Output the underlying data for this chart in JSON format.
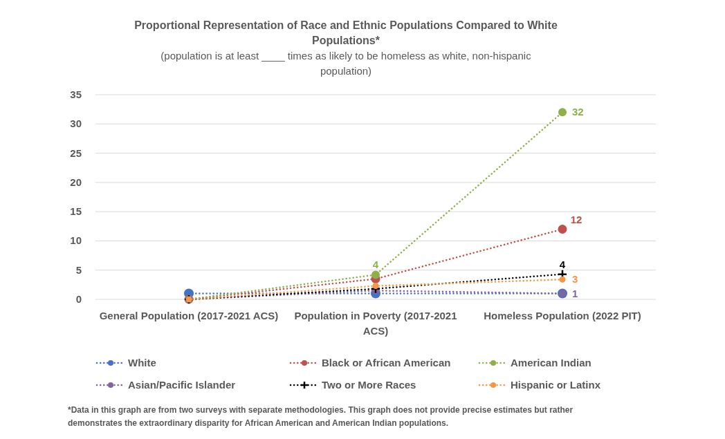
{
  "chart_data": {
    "type": "line",
    "title": "Proportional Representation of Race and Ethnic Populations Compared to White Populations*",
    "subtitle": "(population is at least ____ times as likely to be homeless as white, non-hispanic population)",
    "categories": [
      "General Population (2017-2021 ACS)",
      "Population in Poverty (2017-2021 ACS)",
      "Homeless Population (2022 PIT)"
    ],
    "series": [
      {
        "name": "White",
        "color": "#4472c4",
        "values": [
          1,
          1,
          1
        ],
        "value_labels": [
          null,
          null,
          null
        ]
      },
      {
        "name": "Black or African American",
        "color": "#c0504d",
        "values": [
          0,
          3.5,
          12
        ],
        "value_labels": [
          null,
          null,
          "12"
        ]
      },
      {
        "name": "American Indian",
        "color": "#8db048",
        "values": [
          0,
          4.2,
          32
        ],
        "value_labels": [
          null,
          "4",
          "32"
        ]
      },
      {
        "name": "Asian/Pacific Islander",
        "color": "#8064a2",
        "values": [
          0,
          1.5,
          1
        ],
        "value_labels": [
          null,
          null,
          "1"
        ]
      },
      {
        "name": "Two or More Races",
        "color": "#000000",
        "values": [
          0,
          1.8,
          4.3
        ],
        "value_labels": [
          null,
          null,
          "4"
        ],
        "marker": "cross"
      },
      {
        "name": "Hispanic or Latinx",
        "color": "#f79646",
        "values": [
          0,
          2.3,
          3.4
        ],
        "value_labels": [
          null,
          null,
          "3"
        ]
      }
    ],
    "ylim": [
      0,
      35
    ],
    "yticks": [
      0,
      5,
      10,
      15,
      20,
      25,
      30,
      35
    ],
    "grid": "y",
    "legend": "bottom",
    "marker": "circle",
    "line_style": "dotted",
    "annotations": [
      "*Data in this graph are from two surveys with separate methodologies. This graph does not provide precise estimates but rather demonstrates the extraordinary disparity for African American and American Indian populations."
    ]
  }
}
